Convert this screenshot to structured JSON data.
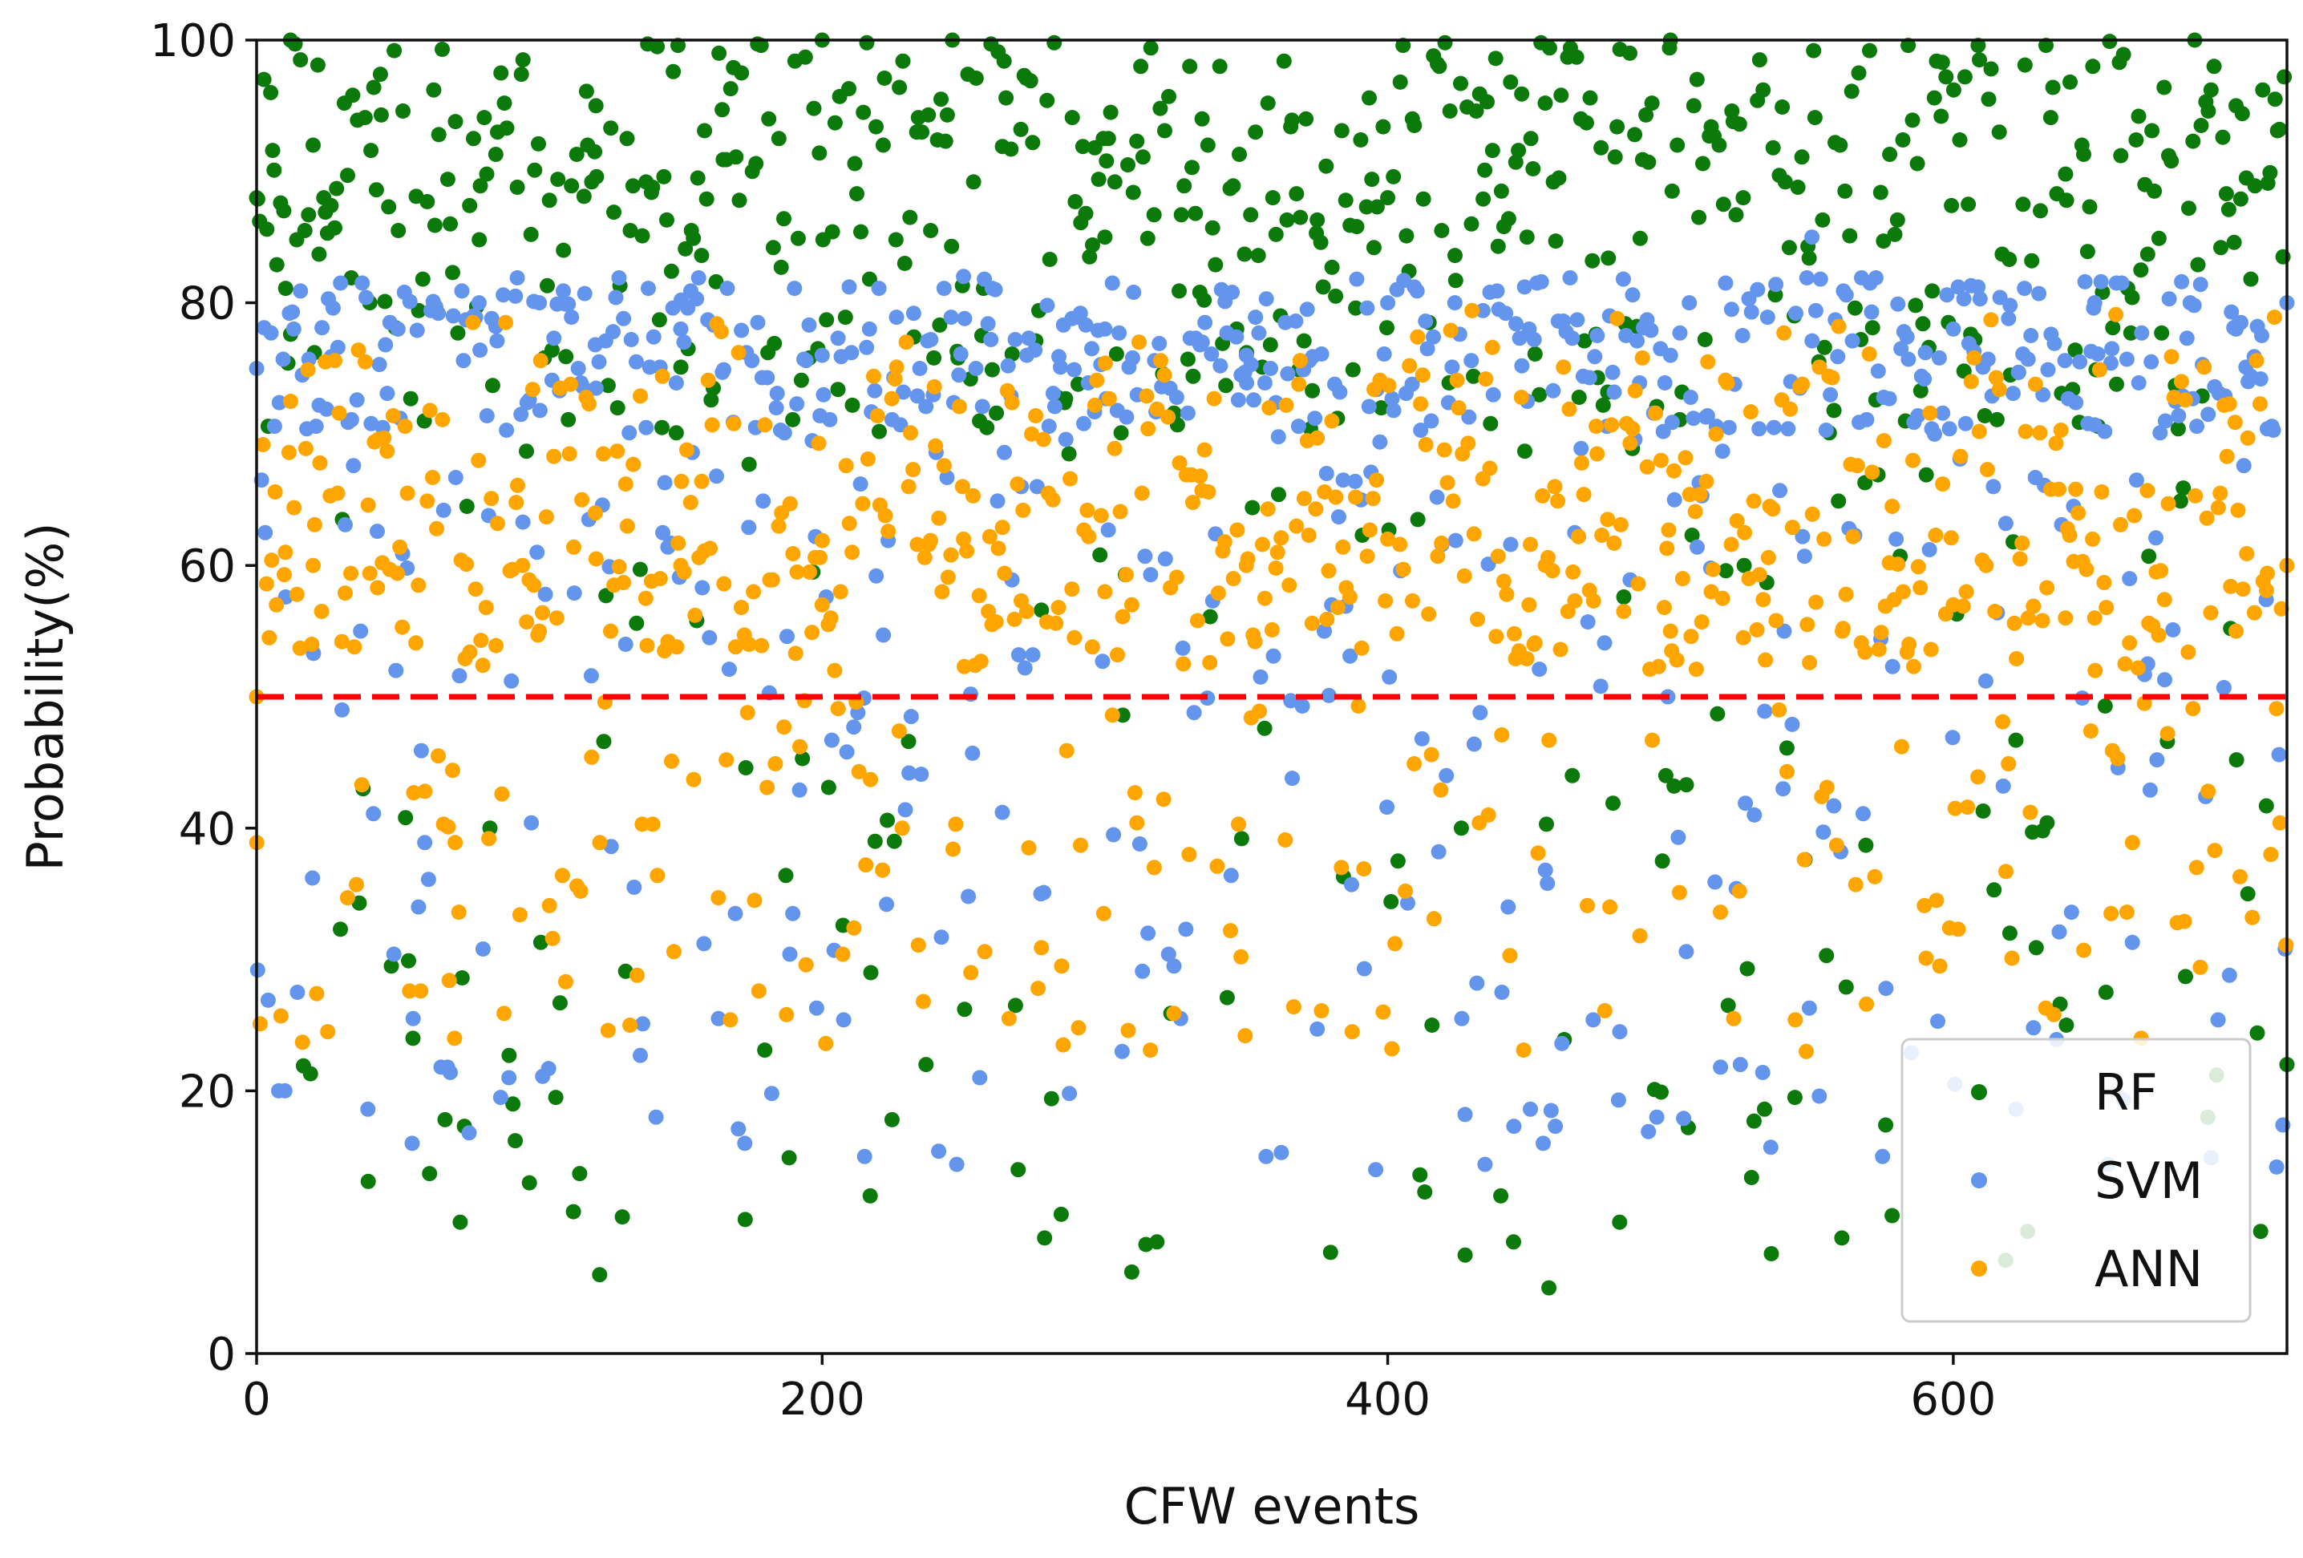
{
  "chart_data": {
    "type": "scatter",
    "title": "",
    "xlabel": "CFW events",
    "ylabel": "Probability(%)",
    "xlim": [
      0,
      718
    ],
    "ylim": [
      0,
      100
    ],
    "xticks": [
      0,
      200,
      400,
      600
    ],
    "yticks": [
      0,
      20,
      40,
      60,
      80,
      100
    ],
    "grid": false,
    "legend_position": "lower-right",
    "threshold": {
      "y": 50,
      "color": "#ff0000",
      "style": "dashed"
    },
    "n_events": 718,
    "series": [
      {
        "name": "RF",
        "color": "#0b7a0b",
        "points_description": "one probability per CFW event; most values between 75 and 100, a minority scattered between 5 and 50",
        "sample_points": [
          [
            0,
            88
          ],
          [
            5,
            96
          ],
          [
            12,
            100
          ],
          [
            20,
            92
          ],
          [
            40,
            80
          ],
          [
            72,
            10
          ],
          [
            120,
            95
          ],
          [
            200,
            100
          ],
          [
            217,
            12
          ],
          [
            300,
            85
          ],
          [
            330,
            98
          ],
          [
            400,
            88
          ],
          [
            440,
            12
          ],
          [
            457,
            5
          ],
          [
            482,
            10
          ],
          [
            500,
            100
          ],
          [
            560,
            92
          ],
          [
            620,
            32
          ],
          [
            640,
            25
          ],
          [
            690,
            18
          ],
          [
            700,
            95
          ],
          [
            718,
            22
          ]
        ]
      },
      {
        "name": "SVM",
        "color": "#6495ed",
        "points_description": "one probability per CFW event; dense band around 65–82, with many values scattered between 14 and 50",
        "sample_points": [
          [
            0,
            75
          ],
          [
            10,
            20
          ],
          [
            50,
            78
          ],
          [
            55,
            16
          ],
          [
            100,
            80
          ],
          [
            150,
            78
          ],
          [
            200,
            76
          ],
          [
            215,
            15
          ],
          [
            250,
            82
          ],
          [
            300,
            78
          ],
          [
            350,
            76
          ],
          [
            357,
            15
          ],
          [
            400,
            80
          ],
          [
            450,
            78
          ],
          [
            455,
            16
          ],
          [
            500,
            76
          ],
          [
            550,
            85
          ],
          [
            575,
            15
          ],
          [
            600,
            78
          ],
          [
            650,
            80
          ],
          [
            700,
            78
          ],
          [
            718,
            80
          ]
        ]
      },
      {
        "name": "ANN",
        "color": "#ffa500",
        "points_description": "one probability per CFW event; dense band around 52–75, with values scattered between 23 and 50",
        "sample_points": [
          [
            0,
            50
          ],
          [
            20,
            60
          ],
          [
            70,
            24
          ],
          [
            100,
            55
          ],
          [
            150,
            60
          ],
          [
            200,
            57
          ],
          [
            250,
            62
          ],
          [
            300,
            58
          ],
          [
            350,
            60
          ],
          [
            400,
            62
          ],
          [
            450,
            57
          ],
          [
            500,
            55
          ],
          [
            548,
            23
          ],
          [
            600,
            57
          ],
          [
            650,
            56
          ],
          [
            700,
            55
          ],
          [
            718,
            60
          ]
        ]
      }
    ]
  }
}
